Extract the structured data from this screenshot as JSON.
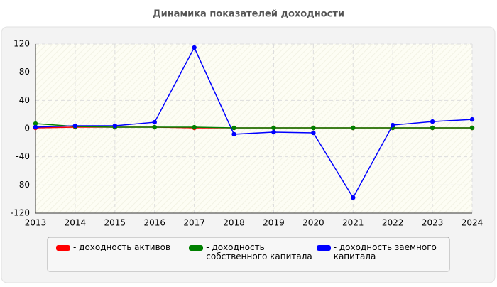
{
  "chart_data": {
    "type": "line",
    "title": "Динамика показателей доходности",
    "x": [
      2013,
      2014,
      2015,
      2016,
      2017,
      2018,
      2019,
      2020,
      2021,
      2022,
      2023,
      2024
    ],
    "xlim": [
      2013,
      2024
    ],
    "xticks": [
      2013,
      2014,
      2015,
      2016,
      2017,
      2018,
      2019,
      2020,
      2021,
      2022,
      2023,
      2024
    ],
    "ylim": [
      -120,
      120
    ],
    "yticks": [
      -120,
      -80,
      -40,
      0,
      40,
      80,
      120
    ],
    "grid": true,
    "series": [
      {
        "name": "- доходность активов",
        "color": "#ff0000",
        "values": [
          1,
          2,
          2,
          2,
          1,
          1,
          1,
          1,
          1,
          1,
          1,
          1
        ]
      },
      {
        "name": "- доходность собственного капитала",
        "color": "#008000",
        "values": [
          7,
          3,
          2,
          2,
          2,
          1,
          1,
          1,
          1,
          1,
          1,
          1
        ]
      },
      {
        "name": "- доходность заемного капитала",
        "color": "#0000ff",
        "values": [
          2,
          4,
          4,
          9,
          115,
          -8,
          -5,
          -6,
          -98,
          5,
          10,
          13
        ]
      }
    ]
  }
}
